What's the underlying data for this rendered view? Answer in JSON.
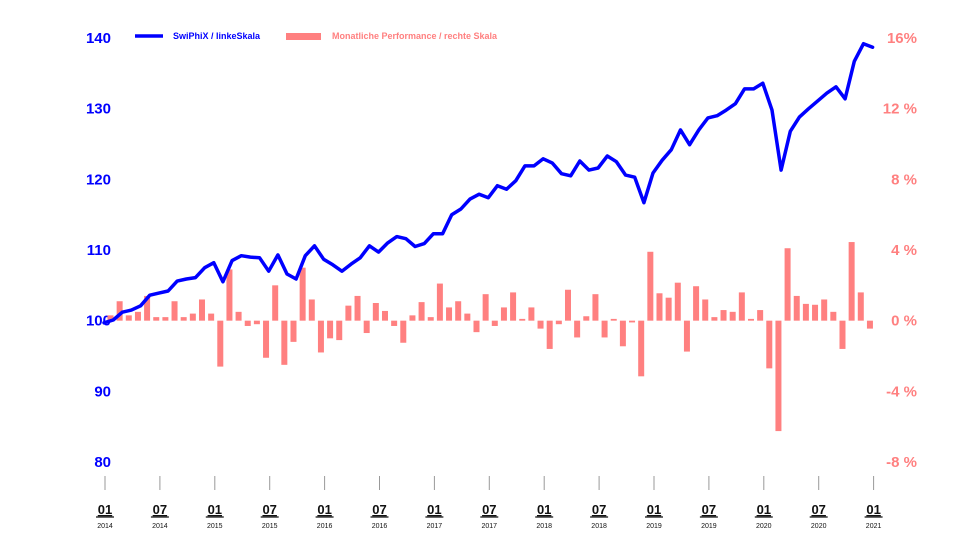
{
  "chart_data": {
    "type": "line+bar",
    "title": "",
    "start_month": "2014-01",
    "legend": {
      "placement": "top-left",
      "line_label": "SwiPhiX / linkeSkala",
      "bar_label": "Monatliche Performance / rechte Skala"
    },
    "colors": {
      "line": "#0000ff",
      "bar": "#ff8080",
      "tick": "#999999"
    },
    "left_axis": {
      "ylim": [
        80,
        140
      ],
      "ticks": [
        "140",
        "130",
        "120",
        "110",
        "100",
        "90",
        "80"
      ],
      "values": [
        140,
        130,
        120,
        110,
        100,
        90,
        80
      ]
    },
    "right_axis": {
      "ylim": [
        -8,
        16
      ],
      "ticks": [
        "16%",
        "12 %",
        "8 %",
        "4 %",
        "0 %",
        "-4 %",
        "-8 %"
      ],
      "values": [
        16,
        12,
        8,
        4,
        0,
        -4,
        -8
      ]
    },
    "x_ticks": [
      {
        "month": "01",
        "year": "2014",
        "index": 0
      },
      {
        "month": "07",
        "year": "2014",
        "index": 6
      },
      {
        "month": "01",
        "year": "2015",
        "index": 12
      },
      {
        "month": "07",
        "year": "2015",
        "index": 18
      },
      {
        "month": "01",
        "year": "2016",
        "index": 24
      },
      {
        "month": "07",
        "year": "2016",
        "index": 30
      },
      {
        "month": "01",
        "year": "2017",
        "index": 36
      },
      {
        "month": "07",
        "year": "2017",
        "index": 42
      },
      {
        "month": "01",
        "year": "2018",
        "index": 48
      },
      {
        "month": "07",
        "year": "2018",
        "index": 54
      },
      {
        "month": "01",
        "year": "2019",
        "index": 60
      },
      {
        "month": "07",
        "year": "2019",
        "index": 66
      },
      {
        "month": "01",
        "year": "2020",
        "index": 72
      },
      {
        "month": "07",
        "year": "2020",
        "index": 78
      },
      {
        "month": "01",
        "year": "2021",
        "index": 84
      }
    ],
    "series": [
      {
        "name": "SwiPhiX",
        "axis": "left",
        "type": "line",
        "values": [
          99.7,
          100.1,
          101.2,
          101.5,
          102.1,
          103.6,
          103.9,
          104.2,
          105.6,
          105.9,
          106.1,
          107.5,
          108.2,
          105.5,
          108.5,
          109.2,
          109.0,
          108.9,
          107.0,
          109.3,
          106.6,
          105.9,
          109.2,
          110.6,
          108.7,
          107.9,
          107.0,
          108.0,
          108.9,
          110.6,
          109.7,
          111.0,
          111.9,
          111.6,
          110.5,
          110.9,
          112.3,
          112.3,
          115.0,
          115.8,
          117.2,
          117.9,
          117.4,
          119.1,
          118.6,
          119.8,
          121.9,
          121.9,
          122.9,
          122.3,
          120.8,
          120.5,
          122.6,
          121.3,
          121.6,
          123.3,
          122.5,
          120.6,
          120.3,
          116.7,
          120.9,
          122.7,
          124.2,
          127.0,
          124.9,
          127.0,
          128.7,
          129.0,
          129.8,
          130.7,
          132.8,
          132.8,
          133.6,
          129.8,
          121.3,
          126.8,
          128.8,
          130.0,
          131.1,
          132.2,
          133.1,
          131.4,
          136.7,
          139.2,
          138.7
        ]
      },
      {
        "name": "Monatliche Performance",
        "axis": "right",
        "type": "bar",
        "unit": "%",
        "values": [
          0.3,
          1.1,
          0.3,
          0.5,
          1.4,
          0.2,
          0.2,
          1.1,
          0.2,
          0.4,
          1.2,
          0.4,
          -2.6,
          2.9,
          0.5,
          -0.3,
          -0.2,
          -2.1,
          2.0,
          -2.5,
          -1.2,
          3.0,
          1.2,
          -1.8,
          -1.0,
          -1.1,
          0.85,
          1.4,
          -0.7,
          1.0,
          0.55,
          -0.3,
          -1.25,
          0.3,
          1.05,
          0.2,
          2.1,
          0.75,
          1.1,
          0.4,
          -0.65,
          1.5,
          -0.3,
          0.75,
          1.6,
          0.1,
          0.75,
          -0.45,
          -1.6,
          -0.2,
          1.75,
          -0.95,
          0.25,
          1.5,
          -0.95,
          0.1,
          -1.45,
          -0.1,
          -3.15,
          3.9,
          1.55,
          1.3,
          2.15,
          -1.75,
          1.95,
          1.2,
          0.2,
          0.6,
          0.5,
          1.6,
          0.1,
          0.6,
          -2.7,
          -6.25,
          4.1,
          1.4,
          0.95,
          0.9,
          1.2,
          0.5,
          -1.6,
          4.45,
          1.6,
          -0.45
        ]
      }
    ]
  }
}
